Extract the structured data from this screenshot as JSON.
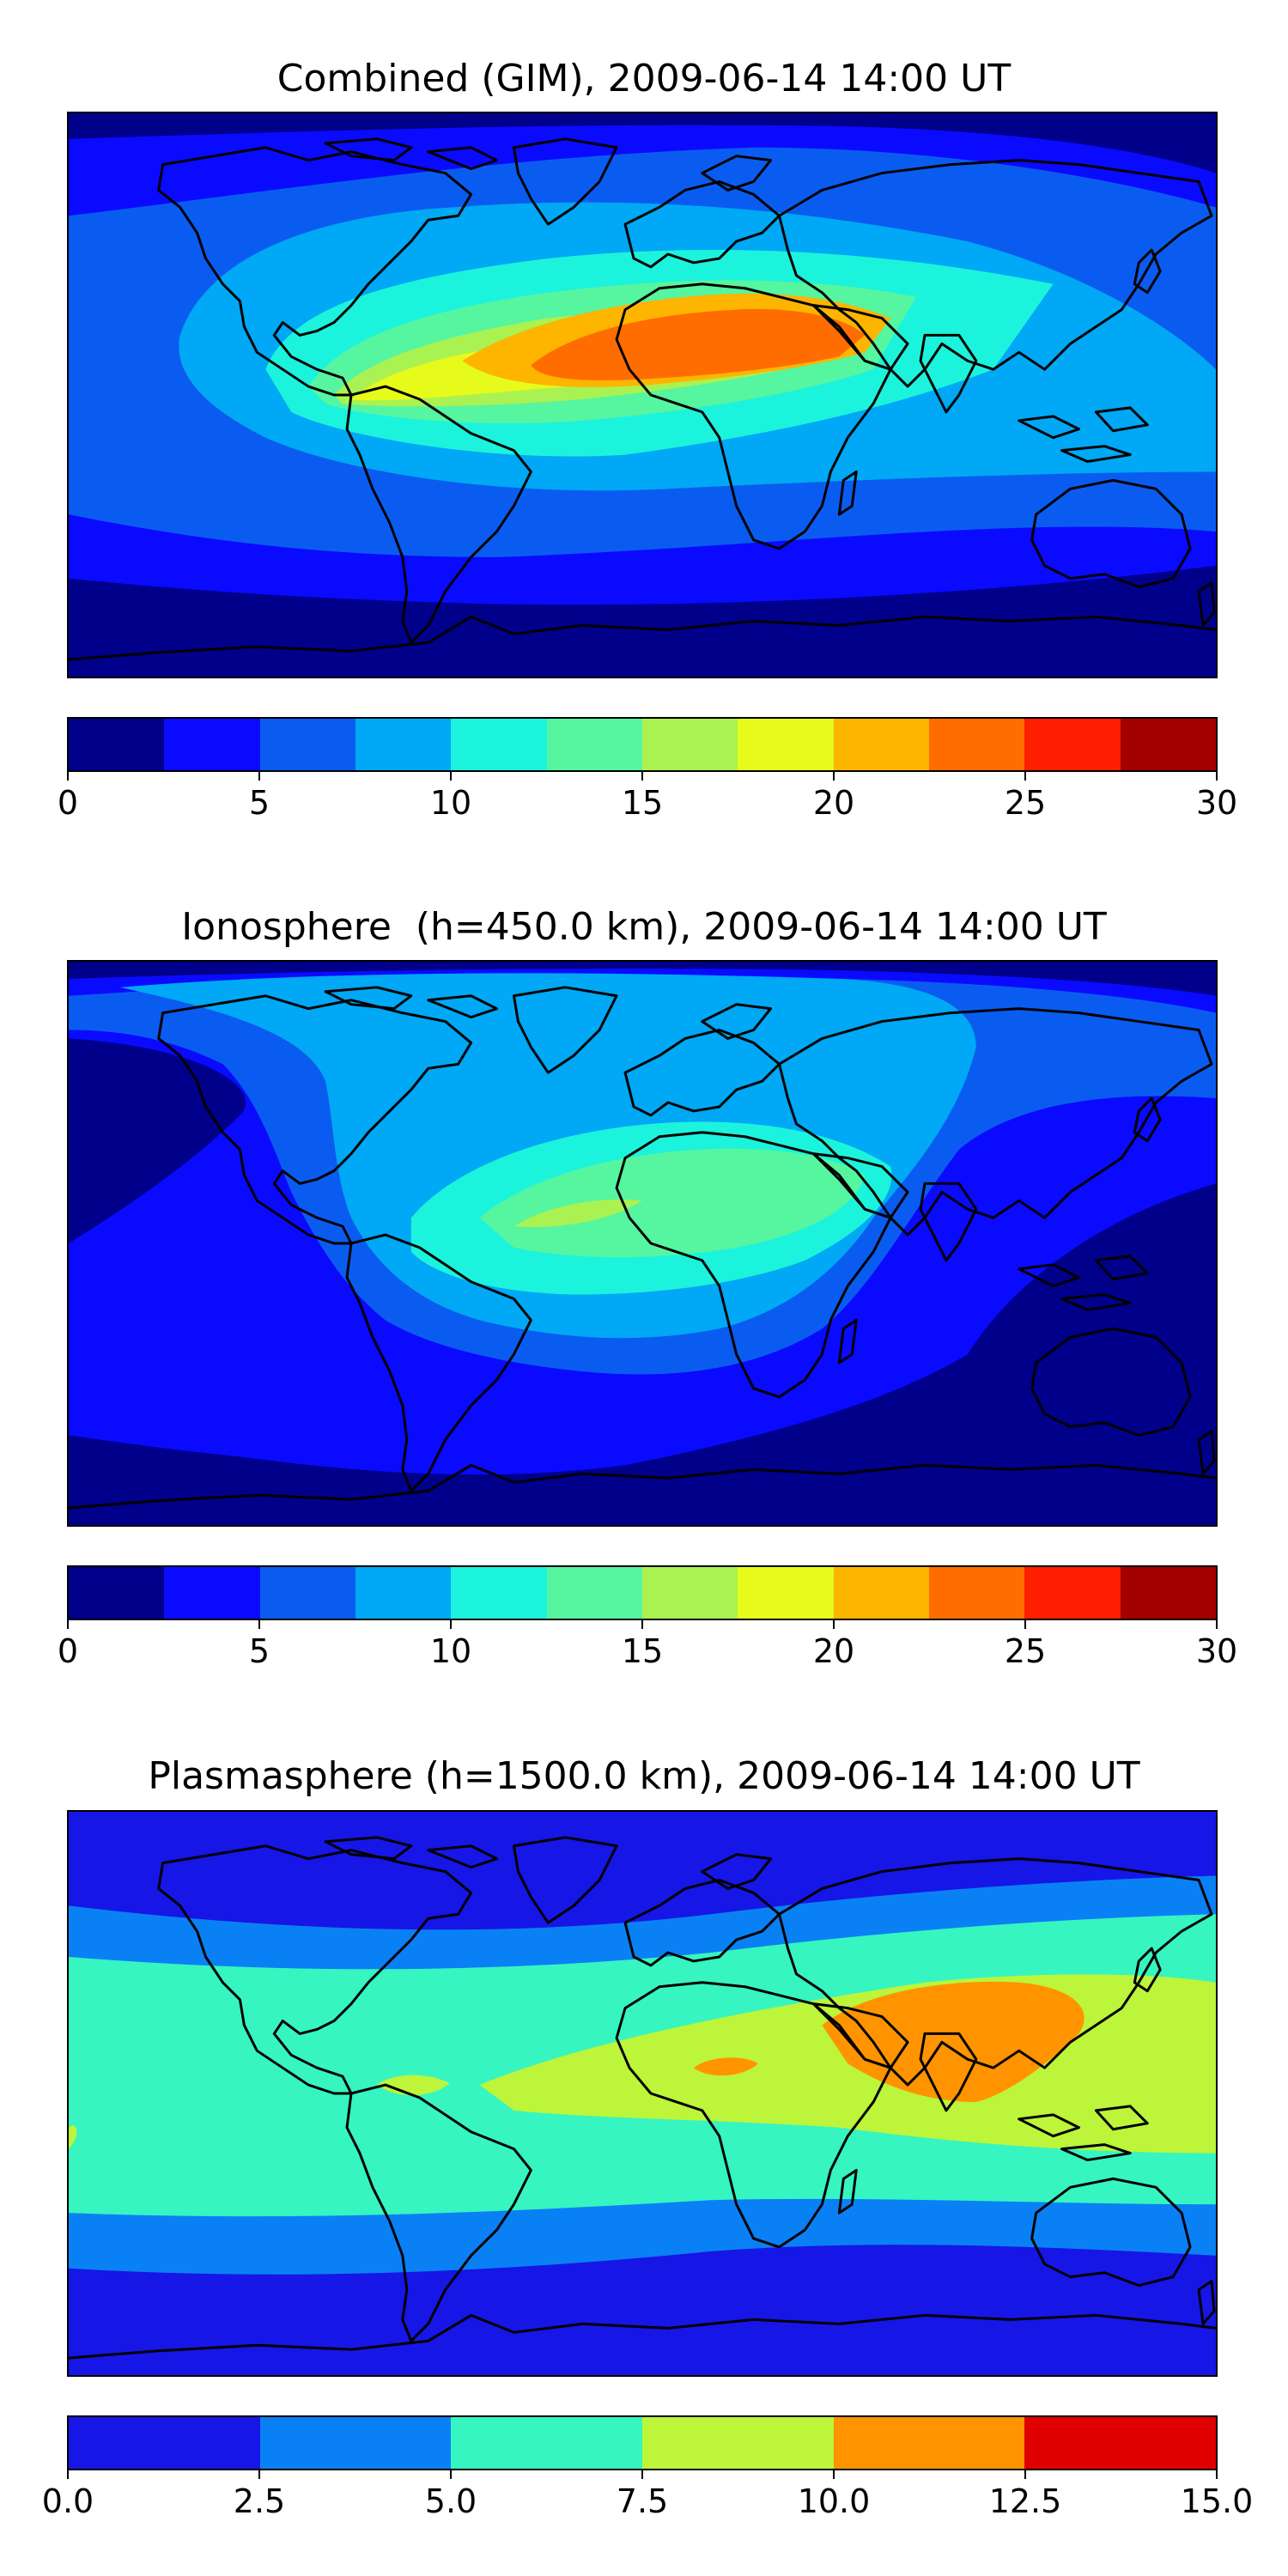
{
  "panels": [
    {
      "title": "Combined (GIM), 2009-06-14 14:00 UT",
      "colorbar": {
        "ticks": [
          "0",
          "5",
          "10",
          "15",
          "20",
          "25",
          "30"
        ],
        "colors": [
          "#00008b",
          "#0a0aff",
          "#0a5cf0",
          "#00a8f5",
          "#1cf3dc",
          "#56f5a0",
          "#aaf251",
          "#e6fb1a",
          "#fdb500",
          "#ff6d00",
          "#ff1f00",
          "#a50000"
        ]
      }
    },
    {
      "title": "Ionosphere  (h=450.0 km), 2009-06-14 14:00 UT",
      "colorbar": {
        "ticks": [
          "0",
          "5",
          "10",
          "15",
          "20",
          "25",
          "30"
        ],
        "colors": [
          "#00008b",
          "#0a0aff",
          "#0a5cf0",
          "#00a8f5",
          "#1cf3dc",
          "#56f5a0",
          "#aaf251",
          "#e6fb1a",
          "#fdb500",
          "#ff6d00",
          "#ff1f00",
          "#a50000"
        ]
      }
    },
    {
      "title": "Plasmasphere (h=1500.0 km), 2009-06-14 14:00 UT",
      "colorbar": {
        "ticks": [
          "0.0",
          "2.5",
          "5.0",
          "7.5",
          "10.0",
          "12.5",
          "15.0"
        ],
        "colors": [
          "#1616e6",
          "#0a80f5",
          "#36f5c0",
          "#bcf53a",
          "#ff9400",
          "#e00000"
        ]
      }
    }
  ]
}
